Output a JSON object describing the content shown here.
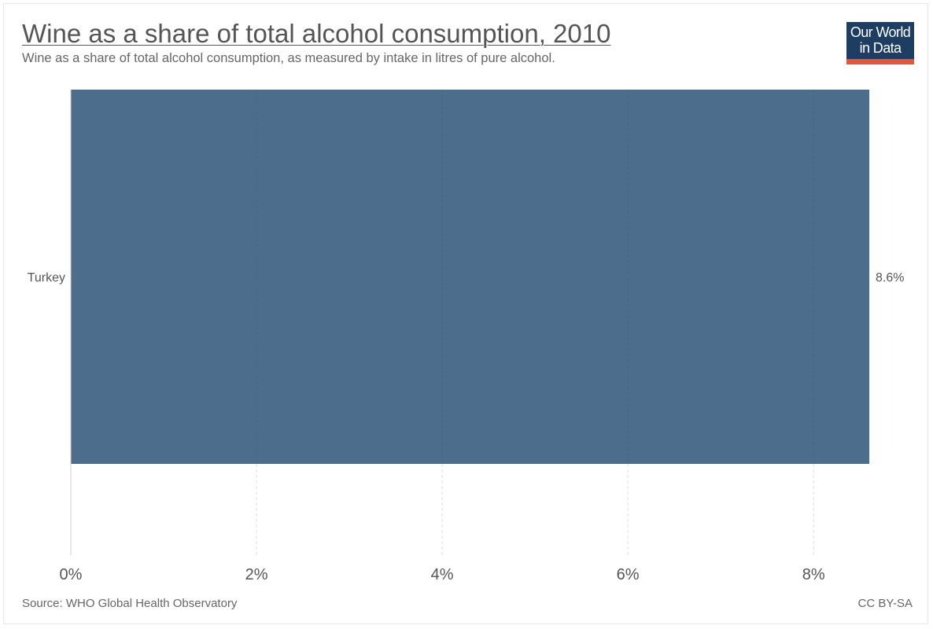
{
  "header": {
    "title": "Wine as a share of total alcohol consumption, 2010",
    "subtitle": "Wine as a share of total alcohol consumption, as measured by intake in litres of pure alcohol."
  },
  "logo": {
    "line1": "Our World",
    "line2": "in Data",
    "background_color": "#1d3d63",
    "accent_color": "#e0573e"
  },
  "footer": {
    "source": "Source: WHO Global Health Observatory",
    "license": "CC BY-SA"
  },
  "chart_data": {
    "type": "bar",
    "orientation": "horizontal",
    "categories": [
      "Turkey"
    ],
    "values": [
      8.6
    ],
    "value_labels": [
      "8.6%"
    ],
    "xlim": [
      0,
      8.6
    ],
    "xticks": [
      0,
      2,
      4,
      6,
      8
    ],
    "xtick_labels": [
      "0%",
      "2%",
      "4%",
      "6%",
      "8%"
    ],
    "grid": "vertical dashed",
    "bar_color": "#4c6d8c",
    "axis_color": "#cccccc"
  }
}
